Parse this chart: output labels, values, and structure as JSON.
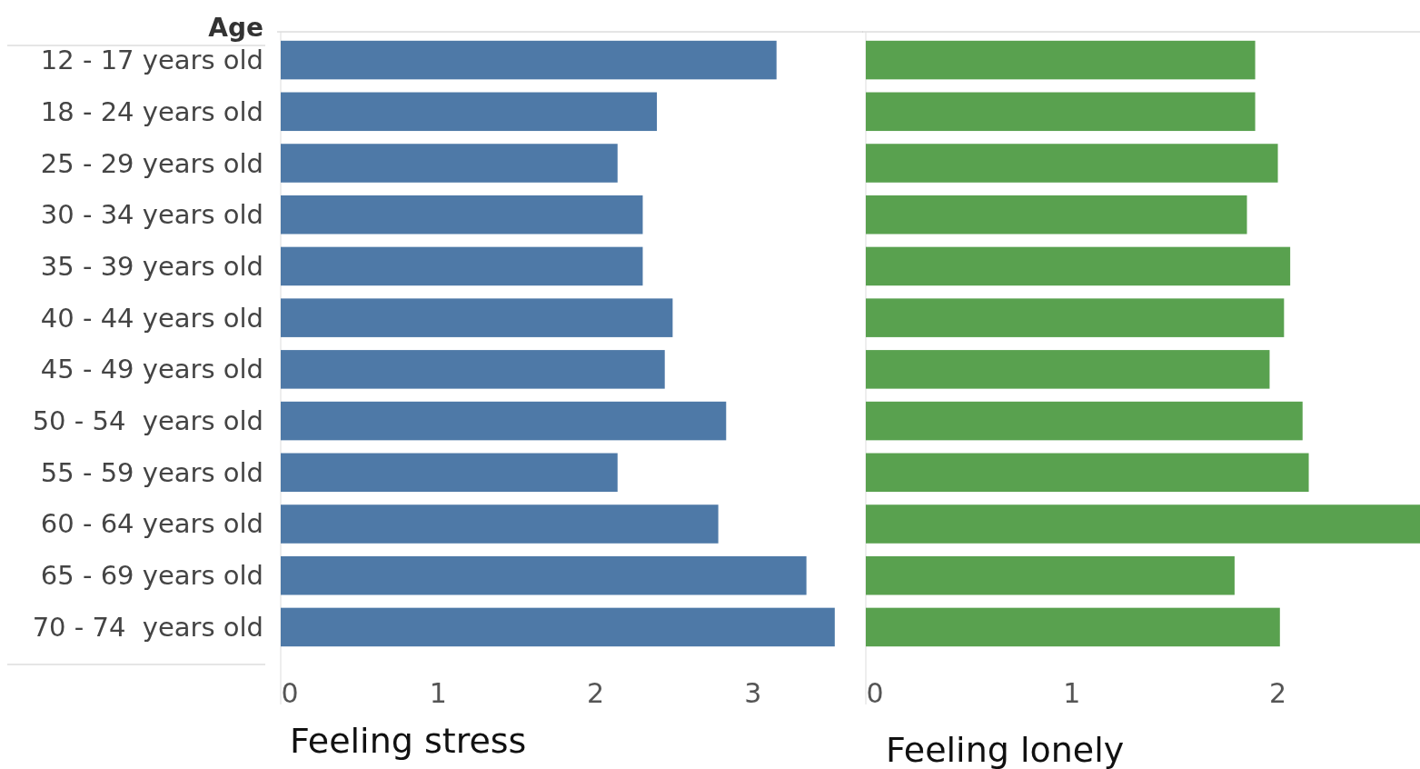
{
  "chart_data": [
    {
      "type": "bar",
      "orientation": "horizontal",
      "ylabel": "Age",
      "xlabel": "Feeling stress",
      "categories": [
        "12 - 17 years old",
        "18 - 24 years old",
        "25 - 29 years old",
        "30 - 34 years old",
        "35 - 39 years old",
        "40 - 44 years old",
        "45 - 49 years old",
        "50 - 54  years old",
        "55 - 59 years old",
        "60 - 64 years old",
        "65 - 69 years old",
        "70 - 74  years old"
      ],
      "series": [
        {
          "color": "#4e79a7",
          "values": [
            3.15,
            2.39,
            2.14,
            2.3,
            2.3,
            2.49,
            2.44,
            2.83,
            2.14,
            2.78,
            3.34,
            3.52
          ]
        }
      ],
      "xlim": [
        0,
        3.7
      ],
      "xticks": [
        0,
        1,
        2,
        3
      ]
    },
    {
      "type": "bar",
      "orientation": "horizontal",
      "xlabel": "Feeling lonely",
      "tick_labels": "x",
      "categories": [
        null,
        null,
        null,
        null,
        null,
        null,
        null,
        null,
        null,
        null,
        null,
        null
      ],
      "series": [
        {
          "color": "#59a14f",
          "values": [
            1.89,
            1.89,
            2.0,
            1.85,
            2.06,
            2.03,
            1.96,
            2.12,
            2.15,
            2.69,
            1.79,
            2.01
          ]
        }
      ],
      "xlim": [
        0,
        2.69
      ],
      "xticks": [
        0,
        1,
        2
      ]
    }
  ]
}
